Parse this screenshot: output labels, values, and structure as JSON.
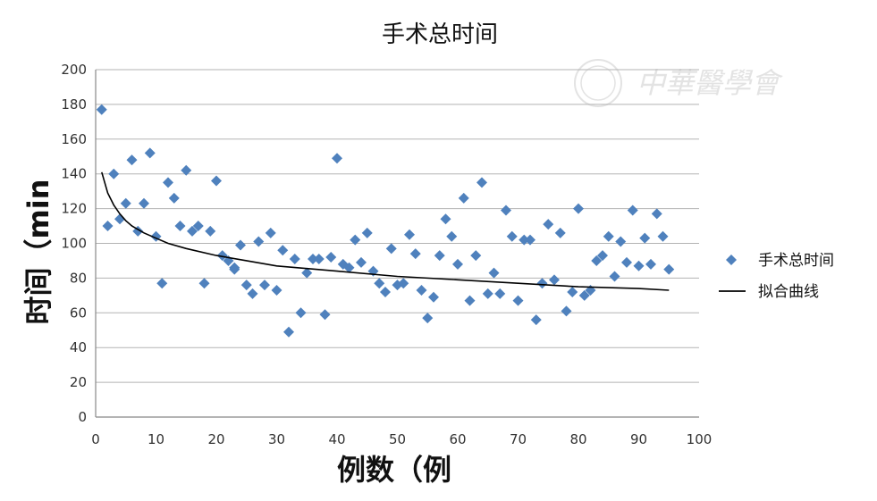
{
  "chart_data": {
    "type": "scatter",
    "title": "手术总时间",
    "xlabel": "例数（例",
    "ylabel": "时间（min",
    "xlim": [
      0,
      100
    ],
    "ylim": [
      0,
      200
    ],
    "x_ticks": [
      "0",
      "10",
      "20",
      "30",
      "40",
      "50",
      "60",
      "70",
      "80",
      "90",
      "100"
    ],
    "y_ticks": [
      "0",
      "20",
      "40",
      "60",
      "80",
      "100",
      "120",
      "140",
      "160",
      "180",
      "200"
    ],
    "grid": "horizontal",
    "legend_position": "right",
    "series": [
      {
        "name": "手术总时间",
        "kind": "scatter",
        "marker": "diamond",
        "color": "#4f81bd",
        "points": [
          [
            1,
            177
          ],
          [
            2,
            110
          ],
          [
            3,
            140
          ],
          [
            4,
            114
          ],
          [
            5,
            123
          ],
          [
            6,
            148
          ],
          [
            7,
            107
          ],
          [
            8,
            123
          ],
          [
            9,
            152
          ],
          [
            10,
            104
          ],
          [
            11,
            77
          ],
          [
            12,
            135
          ],
          [
            13,
            126
          ],
          [
            14,
            110
          ],
          [
            15,
            142
          ],
          [
            16,
            107
          ],
          [
            17,
            110
          ],
          [
            18,
            77
          ],
          [
            19,
            107
          ],
          [
            20,
            136
          ],
          [
            21,
            93
          ],
          [
            22,
            90
          ],
          [
            23,
            86
          ],
          [
            24,
            99
          ],
          [
            25,
            76
          ],
          [
            26,
            71
          ],
          [
            27,
            101
          ],
          [
            28,
            76
          ],
          [
            29,
            106
          ],
          [
            30,
            73
          ],
          [
            31,
            96
          ],
          [
            32,
            49
          ],
          [
            33,
            91
          ],
          [
            34,
            60
          ],
          [
            35,
            83
          ],
          [
            36,
            91
          ],
          [
            37,
            91
          ],
          [
            38,
            59
          ],
          [
            39,
            92
          ],
          [
            40,
            149
          ],
          [
            41,
            88
          ],
          [
            42,
            86
          ],
          [
            43,
            102
          ],
          [
            44,
            89
          ],
          [
            45,
            106
          ],
          [
            46,
            84
          ],
          [
            47,
            77
          ],
          [
            48,
            72
          ],
          [
            49,
            97
          ],
          [
            50,
            76
          ],
          [
            51,
            77
          ],
          [
            52,
            105
          ],
          [
            53,
            94
          ],
          [
            54,
            73
          ],
          [
            55,
            57
          ],
          [
            56,
            69
          ],
          [
            57,
            93
          ],
          [
            58,
            114
          ],
          [
            59,
            104
          ],
          [
            60,
            88
          ],
          [
            61,
            126
          ],
          [
            62,
            67
          ],
          [
            63,
            93
          ],
          [
            64,
            135
          ],
          [
            65,
            71
          ],
          [
            66,
            83
          ],
          [
            67,
            71
          ],
          [
            68,
            119
          ],
          [
            69,
            104
          ],
          [
            70,
            67
          ],
          [
            71,
            102
          ],
          [
            72,
            102
          ],
          [
            73,
            56
          ],
          [
            74,
            77
          ],
          [
            75,
            111
          ],
          [
            76,
            79
          ],
          [
            77,
            106
          ],
          [
            78,
            61
          ],
          [
            79,
            72
          ],
          [
            80,
            120
          ],
          [
            81,
            70
          ],
          [
            82,
            73
          ],
          [
            83,
            90
          ],
          [
            84,
            93
          ],
          [
            85,
            104
          ],
          [
            86,
            81
          ],
          [
            87,
            101
          ],
          [
            88,
            89
          ],
          [
            89,
            119
          ],
          [
            90,
            87
          ],
          [
            91,
            103
          ],
          [
            92,
            88
          ],
          [
            93,
            117
          ],
          [
            94,
            104
          ],
          [
            95,
            85
          ],
          [
            23,
            85
          ]
        ]
      },
      {
        "name": "拟合曲线",
        "kind": "line",
        "color": "#000000",
        "fit": "logarithmic",
        "points": [
          [
            1,
            141
          ],
          [
            2,
            129
          ],
          [
            3,
            122
          ],
          [
            4,
            117
          ],
          [
            5,
            113
          ],
          [
            6,
            110
          ],
          [
            8,
            106
          ],
          [
            10,
            103
          ],
          [
            12,
            100
          ],
          [
            15,
            97
          ],
          [
            20,
            93
          ],
          [
            25,
            90
          ],
          [
            30,
            87
          ],
          [
            40,
            84
          ],
          [
            50,
            81
          ],
          [
            60,
            79
          ],
          [
            70,
            77
          ],
          [
            80,
            75
          ],
          [
            90,
            74
          ],
          [
            95,
            73
          ]
        ]
      }
    ]
  },
  "watermark": {
    "text": "中華醫學會",
    "color": "#e3e3e3"
  }
}
